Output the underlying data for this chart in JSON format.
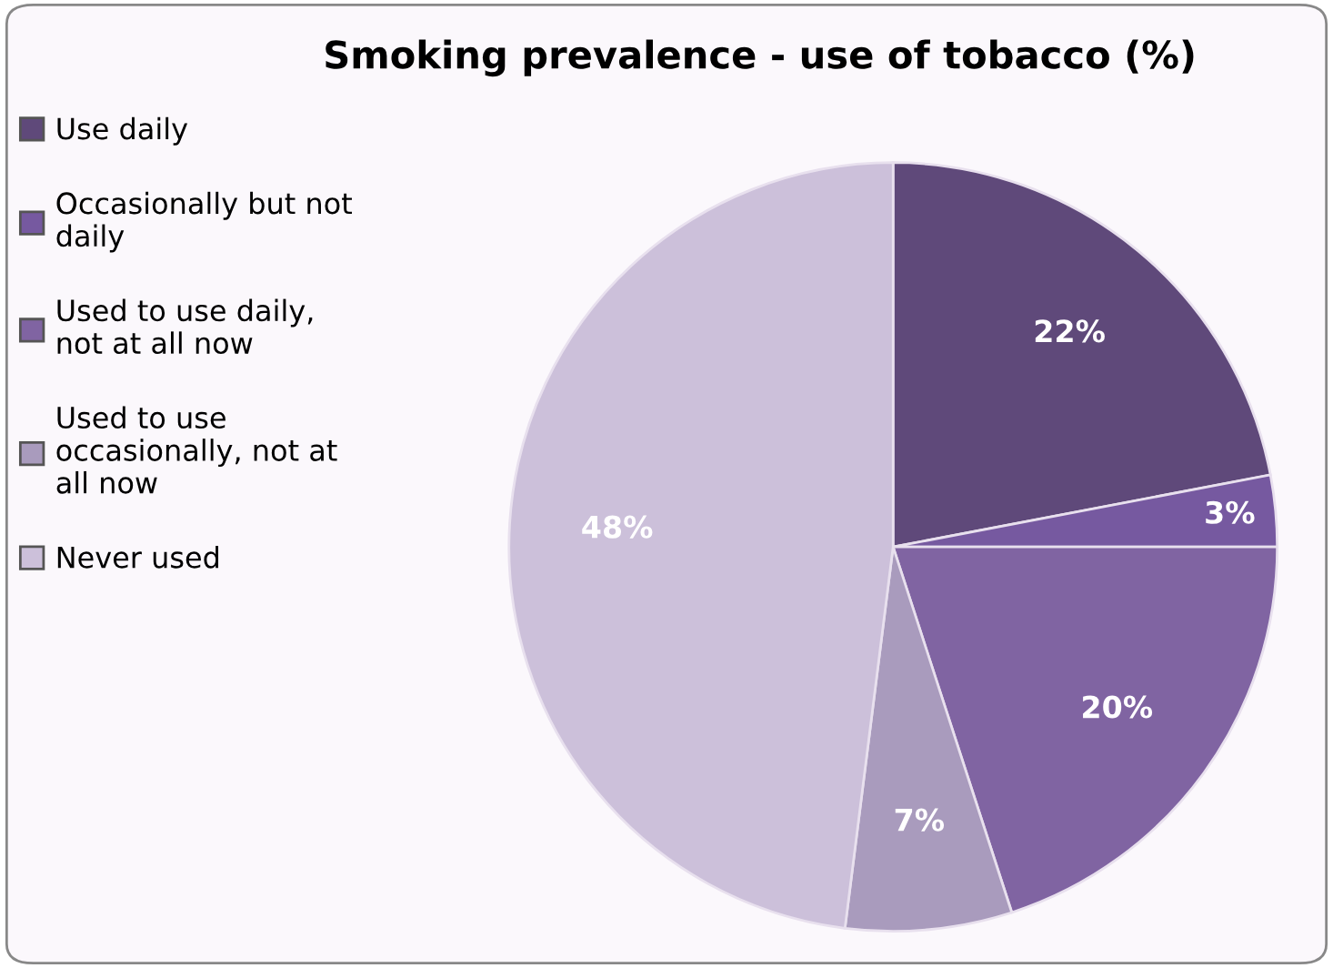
{
  "chart_data": {
    "type": "pie",
    "title": "Smoking prevalence - use of tobacco (%)",
    "categories": [
      "Use daily",
      "Occasionally but not\ndaily",
      "Used to use daily,\nnot at all now",
      "Used to use\noccasionally, not at\nall now",
      "Never used"
    ],
    "values": [
      22,
      3,
      20,
      7,
      48
    ],
    "value_labels": [
      "22%",
      "3%",
      "20%",
      "7%",
      "48%"
    ],
    "colors": [
      "#5f497a",
      "#7659a0",
      "#8064a2",
      "#a99bbd",
      "#ccc0da"
    ],
    "legend": "left"
  }
}
